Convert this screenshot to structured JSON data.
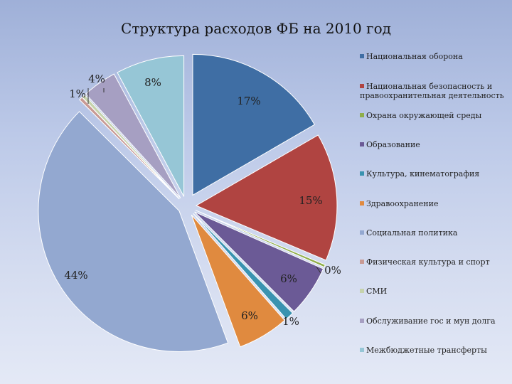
{
  "chart_data": {
    "type": "pie",
    "title": "Структура расходов ФБ на 2010 год",
    "categories": [
      "Национальная оборона",
      "Национальная безопасность и правоохранительная деятельность",
      "Охрана окружающей среды",
      "Образование",
      "Культура, кинематография",
      "Здравоохранение",
      "Социальная политика",
      "Физическая культура и спорт",
      "СМИ",
      "Обслуживание гос и мун долга",
      "Межбюджетные трансферты"
    ],
    "values": [
      17,
      15,
      0.3,
      6,
      1,
      6,
      44,
      0.4,
      0.4,
      4,
      8
    ],
    "data_labels": [
      "17%",
      "15%",
      "0%",
      "6%",
      "1%",
      "6%",
      "44%",
      "",
      "",
      "4%",
      "8%"
    ],
    "extra_labels": [
      "1%"
    ],
    "colors": [
      "#3f6ea4",
      "#b04441",
      "#8fae4a",
      "#6b5a96",
      "#3a93b0",
      "#e08a3f",
      "#93a8d0",
      "#c89a94",
      "#c6d3ad",
      "#a69fc2",
      "#96c6d6"
    ],
    "legend_position": "right",
    "exploded": true
  }
}
